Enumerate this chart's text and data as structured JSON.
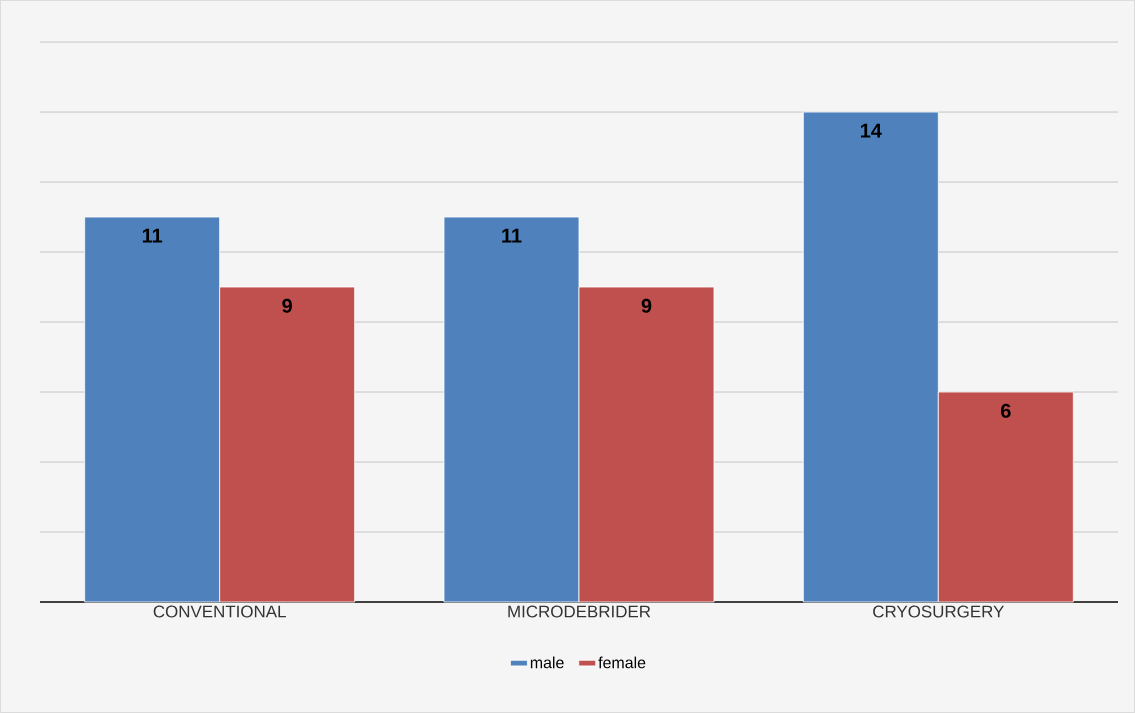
{
  "chart_data": {
    "type": "bar",
    "categories": [
      "CONVENTIONAL",
      "MICRODEBRIDER",
      "CRYOSURGERY"
    ],
    "series": [
      {
        "name": "male",
        "color": "#4f81bd",
        "values": [
          11,
          11,
          14
        ]
      },
      {
        "name": "female",
        "color": "#c0504d",
        "values": [
          9,
          9,
          6
        ]
      }
    ],
    "tick_labels": "x",
    "grid": "y",
    "legend": "bottom",
    "data_labels": true
  }
}
